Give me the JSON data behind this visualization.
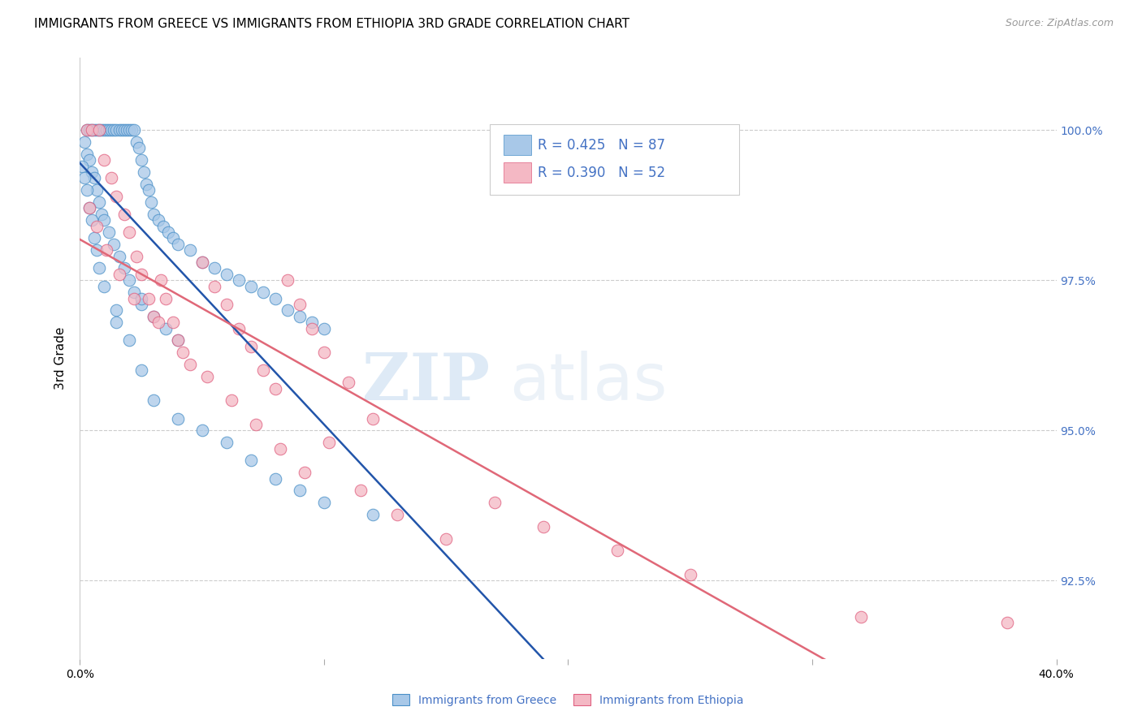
{
  "title": "IMMIGRANTS FROM GREECE VS IMMIGRANTS FROM ETHIOPIA 3RD GRADE CORRELATION CHART",
  "source": "Source: ZipAtlas.com",
  "ylabel": "3rd Grade",
  "yticks": [
    92.5,
    95.0,
    97.5,
    100.0
  ],
  "ytick_labels": [
    "92.5%",
    "95.0%",
    "97.5%",
    "100.0%"
  ],
  "xmin": 0.0,
  "xmax": 40.0,
  "ymin": 91.2,
  "ymax": 101.2,
  "greece_color": "#a8c8e8",
  "ethiopia_color": "#f4b8c4",
  "greece_edge": "#4a90c8",
  "ethiopia_edge": "#e06080",
  "greece_line_color": "#2255aa",
  "ethiopia_line_color": "#e06878",
  "legend_R_greece": "R = 0.425",
  "legend_N_greece": "N = 87",
  "legend_R_ethiopia": "R = 0.390",
  "legend_N_ethiopia": "N = 52",
  "legend_label_greece": "Immigrants from Greece",
  "legend_label_ethiopia": "Immigrants from Ethiopia",
  "watermark_zip": "ZIP",
  "watermark_atlas": "atlas",
  "greece_x": [
    0.3,
    0.4,
    0.5,
    0.6,
    0.7,
    0.8,
    0.9,
    1.0,
    1.1,
    1.2,
    1.3,
    1.4,
    1.5,
    1.6,
    1.7,
    1.8,
    1.9,
    2.0,
    2.1,
    2.2,
    2.3,
    2.4,
    2.5,
    2.6,
    2.7,
    2.8,
    2.9,
    3.0,
    3.2,
    3.4,
    3.6,
    3.8,
    4.0,
    4.5,
    5.0,
    5.5,
    6.0,
    6.5,
    7.0,
    7.5,
    8.0,
    8.5,
    9.0,
    9.5,
    10.0,
    0.2,
    0.3,
    0.4,
    0.5,
    0.6,
    0.7,
    0.8,
    0.9,
    1.0,
    1.2,
    1.4,
    1.6,
    1.8,
    2.0,
    2.2,
    2.5,
    3.0,
    3.5,
    4.0,
    0.1,
    0.2,
    0.3,
    0.4,
    0.5,
    0.6,
    0.7,
    0.8,
    1.0,
    1.5,
    2.0,
    2.5,
    3.0,
    4.0,
    5.0,
    6.0,
    7.0,
    8.0,
    9.0,
    10.0,
    12.0,
    1.5,
    2.5
  ],
  "greece_y": [
    100.0,
    100.0,
    100.0,
    100.0,
    100.0,
    100.0,
    100.0,
    100.0,
    100.0,
    100.0,
    100.0,
    100.0,
    100.0,
    100.0,
    100.0,
    100.0,
    100.0,
    100.0,
    100.0,
    100.0,
    99.8,
    99.7,
    99.5,
    99.3,
    99.1,
    99.0,
    98.8,
    98.6,
    98.5,
    98.4,
    98.3,
    98.2,
    98.1,
    98.0,
    97.8,
    97.7,
    97.6,
    97.5,
    97.4,
    97.3,
    97.2,
    97.0,
    96.9,
    96.8,
    96.7,
    99.8,
    99.6,
    99.5,
    99.3,
    99.2,
    99.0,
    98.8,
    98.6,
    98.5,
    98.3,
    98.1,
    97.9,
    97.7,
    97.5,
    97.3,
    97.1,
    96.9,
    96.7,
    96.5,
    99.4,
    99.2,
    99.0,
    98.7,
    98.5,
    98.2,
    98.0,
    97.7,
    97.4,
    97.0,
    96.5,
    96.0,
    95.5,
    95.2,
    95.0,
    94.8,
    94.5,
    94.2,
    94.0,
    93.8,
    93.6,
    96.8,
    97.2
  ],
  "ethiopia_x": [
    0.3,
    0.5,
    0.8,
    1.0,
    1.3,
    1.5,
    1.8,
    2.0,
    2.3,
    2.5,
    2.8,
    3.0,
    3.3,
    3.5,
    3.8,
    4.0,
    4.5,
    5.0,
    5.5,
    6.0,
    6.5,
    7.0,
    7.5,
    8.0,
    8.5,
    9.0,
    9.5,
    10.0,
    11.0,
    12.0,
    0.4,
    0.7,
    1.1,
    1.6,
    2.2,
    3.2,
    4.2,
    5.2,
    6.2,
    7.2,
    8.2,
    9.2,
    10.2,
    11.5,
    13.0,
    15.0,
    17.0,
    19.0,
    22.0,
    25.0,
    32.0,
    38.0
  ],
  "ethiopia_y": [
    100.0,
    100.0,
    100.0,
    99.5,
    99.2,
    98.9,
    98.6,
    98.3,
    97.9,
    97.6,
    97.2,
    96.9,
    97.5,
    97.2,
    96.8,
    96.5,
    96.1,
    97.8,
    97.4,
    97.1,
    96.7,
    96.4,
    96.0,
    95.7,
    97.5,
    97.1,
    96.7,
    96.3,
    95.8,
    95.2,
    98.7,
    98.4,
    98.0,
    97.6,
    97.2,
    96.8,
    96.3,
    95.9,
    95.5,
    95.1,
    94.7,
    94.3,
    94.8,
    94.0,
    93.6,
    93.2,
    93.8,
    93.4,
    93.0,
    92.6,
    91.9,
    91.8
  ]
}
